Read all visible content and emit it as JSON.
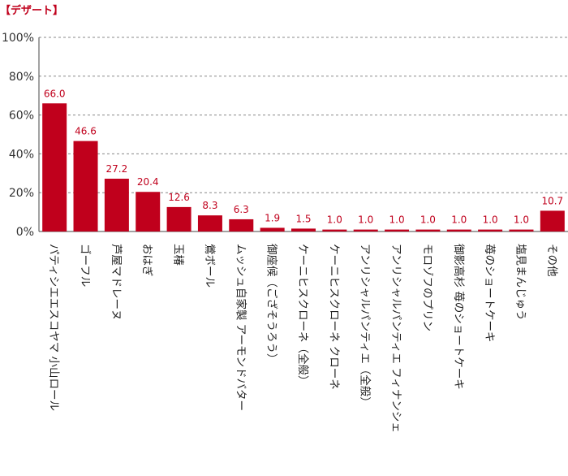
{
  "chart_data": {
    "type": "bar",
    "title": "【デザート】",
    "categories": [
      "パティシエエスコヤマ 小山ロール",
      "ゴーフル",
      "芦屋マドレーヌ",
      "おはぎ",
      "玉椿",
      "鶯ボール",
      "ムッシュ自家製 アーモンドバター",
      "御座候（ござそうろう）",
      "ケーニヒスクローネ（全般）",
      "ケーニヒスクローネ クローネ",
      "アンリシャルパンティエ（全般）",
      "アンリシャルパンティエ フィナンシェ",
      "モロゾフのプリン",
      "御影高杉 苺のショートケーキ",
      "苺のショートケーキ",
      "塩見まんじゅう",
      "その他"
    ],
    "values": [
      66.0,
      46.6,
      27.2,
      20.4,
      12.6,
      8.3,
      6.3,
      1.9,
      1.5,
      1.0,
      1.0,
      1.0,
      1.0,
      1.0,
      1.0,
      1.0,
      10.7
    ],
    "data_labels": [
      "66.0",
      "46.6",
      "27.2",
      "20.4",
      "12.6",
      "8.3",
      "6.3",
      "1.9",
      "1.5",
      "1.0",
      "1.0",
      "1.0",
      "1.0",
      "1.0",
      "1.0",
      "1.0",
      "10.7"
    ],
    "yticks": [
      "0%",
      "20%",
      "40%",
      "60%",
      "80%",
      "100%"
    ],
    "ylim": [
      0,
      100
    ],
    "xlabel": "",
    "ylabel": "",
    "grid": true,
    "bar_color": "#c0001c"
  }
}
